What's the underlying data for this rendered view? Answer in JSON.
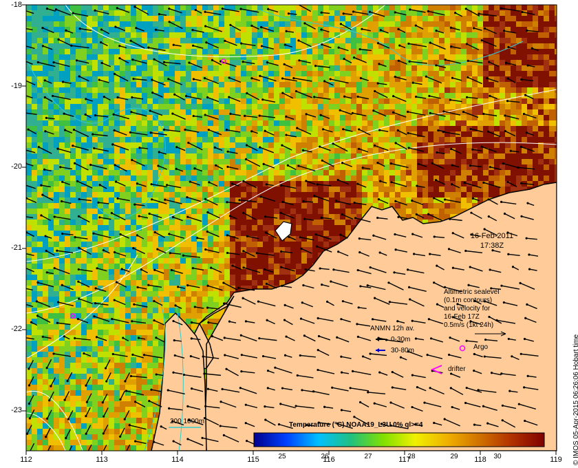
{
  "axes": {
    "y_ticks": [
      "-18",
      "-19",
      "-20",
      "-21",
      "-22",
      "-23"
    ],
    "x_ticks": [
      "112",
      "113",
      "114",
      "115",
      "116",
      "117",
      "118",
      "119"
    ]
  },
  "timestamp": {
    "date": "16-Feb-2011",
    "time": "17:38Z"
  },
  "altimetry_note": [
    "Altimetric sealevel",
    "(0.1m contours)",
    "and velocity for",
    "16-Feb 17Z",
    "0.5m/s (1kt 24h)"
  ],
  "legend": {
    "title": "ANMN 12h av.",
    "shallow": "0-30m",
    "deep": "30-80m",
    "argo": "Argo",
    "drifter": "drifter",
    "bathymetry": "200  1000m"
  },
  "colorbar": {
    "title": "Temperature (°C) NOAA19_L3U 0% ql>=4",
    "ticks": [
      "25",
      "26",
      "27",
      "28",
      "29",
      "30"
    ],
    "stops": [
      "#00008b",
      "#0040ff",
      "#00c0ff",
      "#20c080",
      "#80e000",
      "#f0f000",
      "#f0b000",
      "#d07000",
      "#b03000",
      "#800000"
    ]
  },
  "credit": "© IMOS 05-Apr-2015 06:26:06 Hobart time",
  "colors": {
    "land": "#ffcc99",
    "contour": "#ffffff",
    "bathy": "#33cccc",
    "argo": "#ff00ff",
    "deep_arrow": "#0000cc"
  }
}
